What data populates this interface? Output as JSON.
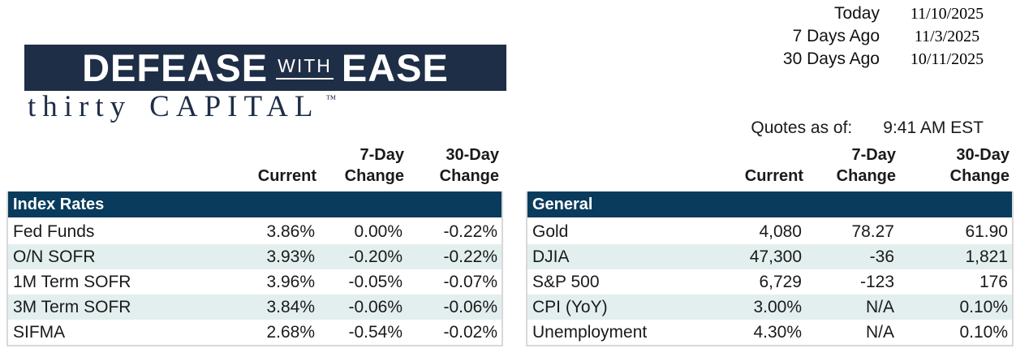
{
  "dates": {
    "rows": [
      {
        "label": "Today",
        "value": "11/10/2025"
      },
      {
        "label": "7 Days Ago",
        "value": "11/3/2025"
      },
      {
        "label": "30 Days Ago",
        "value": "10/11/2025"
      }
    ]
  },
  "logo": {
    "word1": "DEFEASE",
    "word2": "WITH",
    "word3": "EASE",
    "sub1": "thirty",
    "sub2": "CAPITAL",
    "tm": "™"
  },
  "quotes": {
    "label": "Quotes as of:",
    "value": "9:41 AM EST"
  },
  "columns": {
    "d7": "7-Day",
    "d30": "30-Day",
    "current": "Current",
    "change": "Change"
  },
  "tables": [
    {
      "title": "Index Rates",
      "rows": [
        {
          "label": "Fed Funds",
          "current": "3.86%",
          "d7": "0.00%",
          "d30": "-0.22%"
        },
        {
          "label": "O/N SOFR",
          "current": "3.93%",
          "d7": "-0.20%",
          "d30": "-0.22%"
        },
        {
          "label": "1M Term SOFR",
          "current": "3.96%",
          "d7": "-0.05%",
          "d30": "-0.07%"
        },
        {
          "label": "3M Term SOFR",
          "current": "3.84%",
          "d7": "-0.06%",
          "d30": "-0.06%"
        },
        {
          "label": "SIFMA",
          "current": "2.68%",
          "d7": "-0.54%",
          "d30": "-0.02%"
        }
      ]
    },
    {
      "title": "General",
      "rows": [
        {
          "label": "Gold",
          "current": "4,080",
          "d7": "78.27",
          "d30": "61.90"
        },
        {
          "label": "DJIA",
          "current": "47,300",
          "d7": "-36",
          "d30": "1,821"
        },
        {
          "label": "S&P 500",
          "current": "6,729",
          "d7": "-123",
          "d30": "176"
        },
        {
          "label": "CPI (YoY)",
          "current": "3.00%",
          "d7": "N/A",
          "d30": "0.10%"
        },
        {
          "label": "Unemployment",
          "current": "4.30%",
          "d7": "N/A",
          "d30": "0.10%"
        }
      ]
    }
  ],
  "colors": {
    "section_header_bg": "#093b5d",
    "logo_bg": "#1f2e47",
    "row_alt_bg": "#e2efee",
    "table_border": "#d8d8d8",
    "text": "#1a1a1a"
  }
}
